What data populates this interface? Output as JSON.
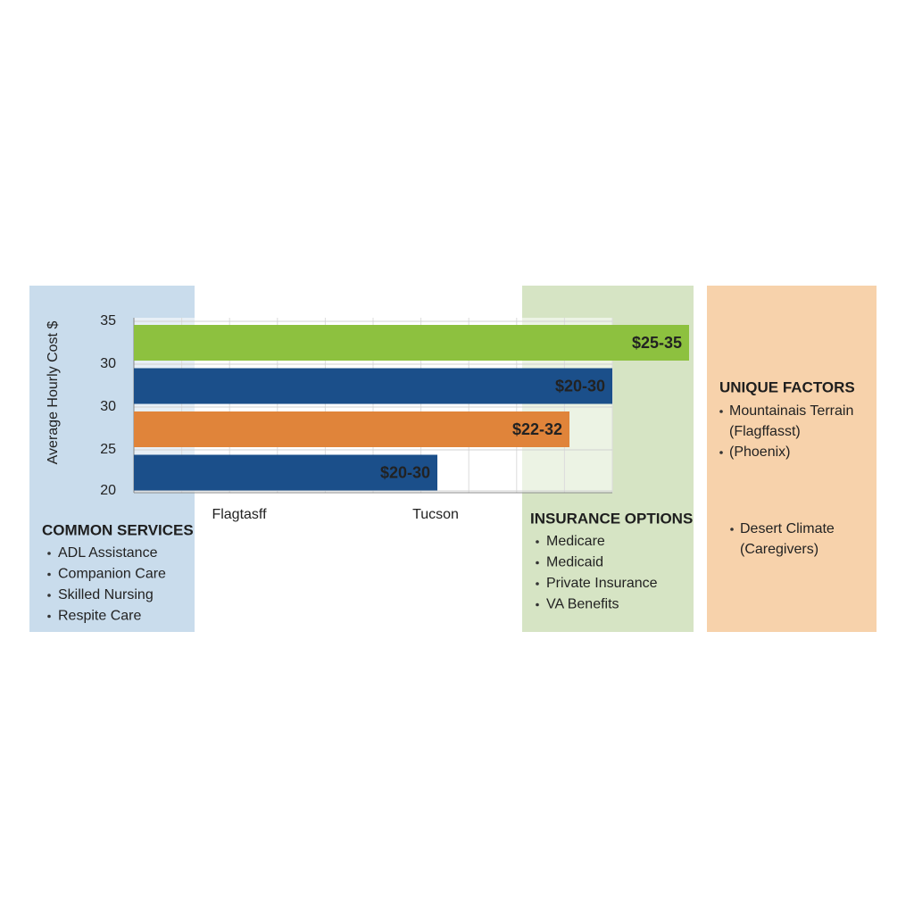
{
  "chart": {
    "axis_title": "Average Hourly Cost $",
    "row_labels": [
      "35",
      "30",
      "30",
      "25",
      "20"
    ],
    "bars": [
      {
        "label": "$25-35",
        "color": "#8dc13f"
      },
      {
        "label": "$20-30",
        "color": "#1b4f8a"
      },
      {
        "label": "$22-32",
        "color": "#e0843a"
      },
      {
        "label": "$20-30",
        "color": "#1b4f8a"
      }
    ],
    "x_labels": [
      "Flagtasff",
      "Tucson"
    ]
  },
  "common_services": {
    "title": "COMMON SERVICES",
    "items": [
      "ADL Assistance",
      "Companion Care",
      "Skilled Nursing",
      "Respite Care"
    ]
  },
  "insurance_options": {
    "title": "INSURANCE OPTIONS",
    "items": [
      "Medicare",
      "Medicaid",
      "Private Insurance",
      "VA Benefits"
    ]
  },
  "unique_factors": {
    "title": "UNIQUE FACTORS",
    "items": [
      {
        "lines": [
          "Mountainais Terrain",
          "(Flagffasst)"
        ]
      },
      {
        "lines": [
          "(Phoenix)"
        ]
      },
      {
        "lines": [
          "Desert Climate",
          "(Caregivers)"
        ]
      }
    ]
  }
}
